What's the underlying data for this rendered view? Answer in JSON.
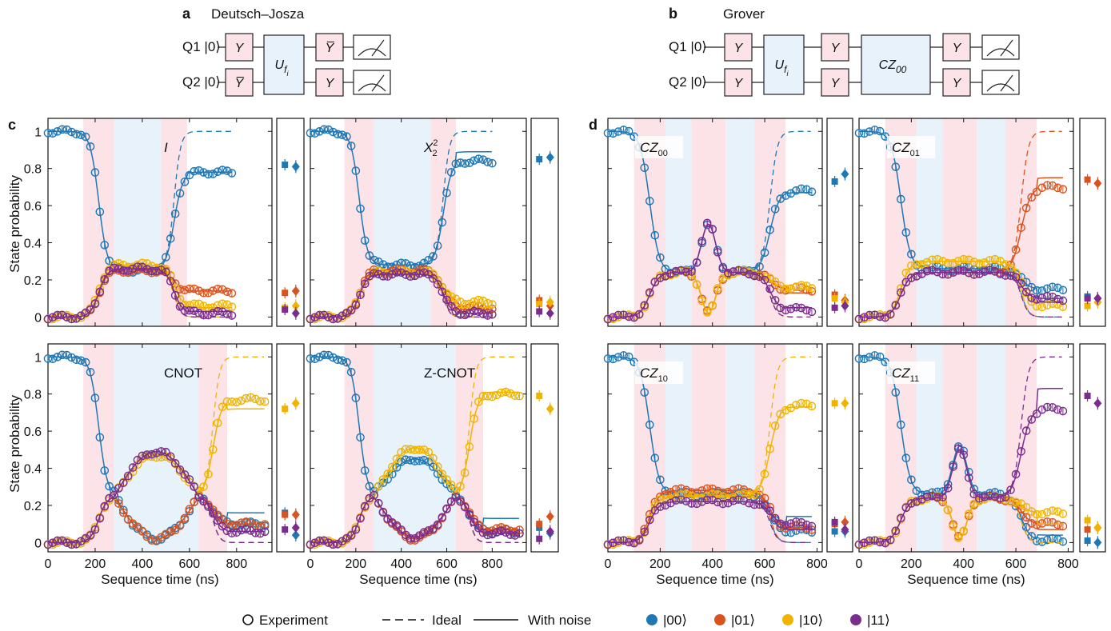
{
  "panel_letters": {
    "a": "a",
    "b": "b",
    "c": "c",
    "d": "d"
  },
  "circuit_a": {
    "title": "Deutsch–Josza",
    "q1_label": "Q1 |0⟩",
    "q2_label": "Q2 |0⟩",
    "q1_gates": [
      "Y",
      "Y̅"
    ],
    "q2_gates": [
      "Y̅",
      "Y"
    ],
    "oracle": "U",
    "oracle_sub": "f",
    "oracle_subsub": "i"
  },
  "circuit_b": {
    "title": "Grover",
    "q1_label": "Q1 |0⟩",
    "q2_label": "Q2 |0⟩",
    "q1_gates": [
      "Y",
      "Y",
      "Y"
    ],
    "q2_gates": [
      "Y",
      "Y",
      "Y"
    ],
    "oracle": "U",
    "oracle_sub": "f",
    "oracle_subsub": "i",
    "cz": "CZ",
    "cz_sub": "00"
  },
  "axes": {
    "ylabel": "State probability",
    "xlabel": "Sequence time (ns)",
    "yticks": [
      "0",
      "0.2",
      "0.4",
      "0.6",
      "0.8",
      "1"
    ],
    "xticks_c": [
      "0",
      "200",
      "400",
      "600",
      "800"
    ],
    "xticks_d": [
      "0",
      "200",
      "400",
      "600",
      "800"
    ]
  },
  "legend": {
    "experiment": "Experiment",
    "ideal": "Ideal",
    "noise": "With noise",
    "s00": "|00⟩",
    "s01": "|01⟩",
    "s10": "|10⟩",
    "s11": "|11⟩"
  },
  "colors": {
    "s00": "#1f77b4",
    "s01": "#d9531e",
    "s10": "#f0b400",
    "s11": "#7b2d8e",
    "pink": "#fbe3e7",
    "blue": "#e8f2fb"
  },
  "chart_data": [
    {
      "id": "I",
      "type": "line",
      "title": "I",
      "xlim": [
        0,
        950
      ],
      "ylim": [
        -0.05,
        1.07
      ],
      "regions": [
        [
          150,
          280,
          "pink"
        ],
        [
          280,
          480,
          "blue"
        ],
        [
          480,
          590,
          "pink"
        ]
      ],
      "series": [
        {
          "state": "00",
          "exp_final": 0.78,
          "ideal_final": 1.0,
          "noise_final": 0.78,
          "mid": 0.25,
          "t_end": 780,
          "side": [
            0.82,
            0.81
          ]
        },
        {
          "state": "01",
          "exp_final": 0.14,
          "ideal_final": 0.0,
          "noise_final": 0.14,
          "mid": 0.25,
          "t_end": 780,
          "side": [
            0.13,
            0.14
          ]
        },
        {
          "state": "10",
          "exp_final": 0.06,
          "ideal_final": 0.0,
          "noise_final": 0.05,
          "mid": 0.28,
          "t_end": 780,
          "side": [
            0.05,
            0.06
          ]
        },
        {
          "state": "11",
          "exp_final": 0.02,
          "ideal_final": 0.0,
          "noise_final": 0.03,
          "mid": 0.26,
          "t_end": 780,
          "side": [
            0.04,
            0.02
          ]
        }
      ]
    },
    {
      "id": "X22",
      "type": "line",
      "title": "X",
      "title_sup": "2",
      "title_sub": "2",
      "xlim": [
        0,
        950
      ],
      "ylim": [
        -0.05,
        1.07
      ],
      "regions": [
        [
          150,
          280,
          "pink"
        ],
        [
          280,
          530,
          "blue"
        ],
        [
          530,
          640,
          "pink"
        ]
      ],
      "series": [
        {
          "state": "00",
          "exp_final": 0.84,
          "ideal_final": 1.0,
          "noise_final": 0.89,
          "mid": 0.28,
          "t_end": 800,
          "side": [
            0.85,
            0.86
          ]
        },
        {
          "state": "01",
          "exp_final": 0.05,
          "ideal_final": 0.0,
          "noise_final": 0.04,
          "mid": 0.25,
          "t_end": 800,
          "side": [
            0.09,
            0.06
          ]
        },
        {
          "state": "10",
          "exp_final": 0.08,
          "ideal_final": 0.0,
          "noise_final": 0.05,
          "mid": 0.24,
          "t_end": 800,
          "side": [
            0.07,
            0.08
          ]
        },
        {
          "state": "11",
          "exp_final": 0.02,
          "ideal_final": 0.0,
          "noise_final": 0.02,
          "mid": 0.23,
          "t_end": 800,
          "side": [
            0.03,
            0.02
          ]
        }
      ]
    },
    {
      "id": "CNOT",
      "type": "line",
      "title": "CNOT",
      "xlim": [
        0,
        950
      ],
      "ylim": [
        -0.05,
        1.07
      ],
      "regions": [
        [
          150,
          280,
          "pink"
        ],
        [
          280,
          640,
          "blue"
        ],
        [
          640,
          760,
          "pink"
        ]
      ],
      "series": [
        {
          "state": "00",
          "exp_final": 0.1,
          "ideal_final": 0.0,
          "noise_final": 0.16,
          "mid": 0.02,
          "t_end": 920,
          "side": [
            0.16,
            0.04
          ],
          "swap": true
        },
        {
          "state": "01",
          "exp_final": 0.1,
          "ideal_final": 0.0,
          "noise_final": 0.1,
          "mid": 0.02,
          "t_end": 920,
          "side": [
            0.15,
            0.15
          ],
          "swap": true
        },
        {
          "state": "10",
          "exp_final": 0.77,
          "ideal_final": 1.0,
          "noise_final": 0.72,
          "mid": 0.47,
          "t_end": 920,
          "side": [
            0.72,
            0.75
          ],
          "swap": true
        },
        {
          "state": "11",
          "exp_final": 0.06,
          "ideal_final": 0.0,
          "noise_final": 0.06,
          "mid": 0.49,
          "t_end": 920,
          "side": [
            0.07,
            0.08
          ],
          "swap": true
        }
      ]
    },
    {
      "id": "ZCNOT",
      "type": "line",
      "title": "Z-CNOT",
      "xlim": [
        0,
        950
      ],
      "ylim": [
        -0.05,
        1.07
      ],
      "regions": [
        [
          150,
          280,
          "pink"
        ],
        [
          280,
          640,
          "blue"
        ],
        [
          640,
          760,
          "pink"
        ]
      ],
      "series": [
        {
          "state": "00",
          "exp_final": 0.06,
          "ideal_final": 0.0,
          "noise_final": 0.13,
          "mid": 0.45,
          "t_end": 920,
          "side": [
            0.08,
            0.05
          ],
          "swap": true
        },
        {
          "state": "01",
          "exp_final": 0.07,
          "ideal_final": 0.0,
          "noise_final": 0.07,
          "mid": 0.02,
          "t_end": 920,
          "side": [
            0.1,
            0.14
          ],
          "swap": true
        },
        {
          "state": "10",
          "exp_final": 0.8,
          "ideal_final": 1.0,
          "noise_final": 0.81,
          "mid": 0.51,
          "t_end": 920,
          "side": [
            0.79,
            0.72
          ],
          "swap": true
        },
        {
          "state": "11",
          "exp_final": 0.05,
          "ideal_final": 0.0,
          "noise_final": 0.05,
          "mid": 0.03,
          "t_end": 920,
          "side": [
            0.02,
            0.06
          ],
          "swap": true
        }
      ]
    },
    {
      "id": "CZ00",
      "type": "line",
      "title": "CZ",
      "title_sub": "00",
      "xlim": [
        0,
        820
      ],
      "ylim": [
        -0.05,
        1.07
      ],
      "regions": [
        [
          100,
          220,
          "pink"
        ],
        [
          220,
          320,
          "blue"
        ],
        [
          320,
          450,
          "pink"
        ],
        [
          450,
          560,
          "blue"
        ],
        [
          560,
          680,
          "pink"
        ]
      ],
      "series": [
        {
          "state": "00",
          "exp_final": 0.68,
          "ideal_final": 1.0,
          "noise_final": 0.67,
          "mid": 0.24,
          "t_end": 780,
          "side": [
            0.73,
            0.77
          ],
          "grover": true
        },
        {
          "state": "01",
          "exp_final": 0.15,
          "ideal_final": 0.0,
          "noise_final": 0.13,
          "mid": 0.24,
          "t_end": 780,
          "side": [
            0.12,
            0.09
          ],
          "grover": true
        },
        {
          "state": "10",
          "exp_final": 0.16,
          "ideal_final": 0.0,
          "noise_final": 0.15,
          "mid": 0.24,
          "t_end": 780,
          "side": [
            0.1,
            0.08
          ],
          "grover": true
        },
        {
          "state": "11",
          "exp_final": 0.04,
          "ideal_final": 0.0,
          "noise_final": 0.05,
          "mid": 0.24,
          "t_end": 780,
          "side": [
            0.05,
            0.06
          ],
          "grover": true
        }
      ]
    },
    {
      "id": "CZ01",
      "type": "line",
      "title": "CZ",
      "title_sub": "01",
      "xlim": [
        0,
        820
      ],
      "ylim": [
        -0.05,
        1.07
      ],
      "regions": [
        [
          100,
          220,
          "pink"
        ],
        [
          220,
          320,
          "blue"
        ],
        [
          320,
          450,
          "pink"
        ],
        [
          450,
          560,
          "blue"
        ],
        [
          560,
          680,
          "pink"
        ]
      ],
      "series": [
        {
          "state": "00",
          "exp_final": 0.15,
          "ideal_final": 0.0,
          "noise_final": 0.1,
          "mid": 0.26,
          "t_end": 780,
          "side": [
            0.11,
            0.1
          ]
        },
        {
          "state": "01",
          "exp_final": 0.7,
          "ideal_final": 1.0,
          "noise_final": 0.75,
          "mid": 0.24,
          "t_end": 780,
          "side": [
            0.74,
            0.72
          ]
        },
        {
          "state": "10",
          "exp_final": 0.06,
          "ideal_final": 0.0,
          "noise_final": 0.08,
          "mid": 0.3,
          "t_end": 780,
          "side": [
            0.06,
            0.08
          ]
        },
        {
          "state": "11",
          "exp_final": 0.1,
          "ideal_final": 0.0,
          "noise_final": 0.08,
          "mid": 0.24,
          "t_end": 780,
          "side": [
            0.1,
            0.1
          ]
        }
      ]
    },
    {
      "id": "CZ10",
      "type": "line",
      "title": "CZ",
      "title_sub": "10",
      "xlim": [
        0,
        820
      ],
      "ylim": [
        -0.05,
        1.07
      ],
      "regions": [
        [
          100,
          220,
          "pink"
        ],
        [
          220,
          320,
          "blue"
        ],
        [
          320,
          450,
          "pink"
        ],
        [
          450,
          560,
          "blue"
        ],
        [
          560,
          680,
          "pink"
        ]
      ],
      "series": [
        {
          "state": "00",
          "exp_final": 0.06,
          "ideal_final": 0.0,
          "noise_final": 0.14,
          "mid": 0.26,
          "t_end": 780,
          "side": [
            0.06,
            0.06
          ]
        },
        {
          "state": "01",
          "exp_final": 0.08,
          "ideal_final": 0.0,
          "noise_final": 0.08,
          "mid": 0.28,
          "t_end": 780,
          "side": [
            0.1,
            0.11
          ]
        },
        {
          "state": "10",
          "exp_final": 0.74,
          "ideal_final": 1.0,
          "noise_final": 0.73,
          "mid": 0.25,
          "t_end": 780,
          "side": [
            0.75,
            0.75
          ]
        },
        {
          "state": "11",
          "exp_final": 0.1,
          "ideal_final": 0.0,
          "noise_final": 0.07,
          "mid": 0.22,
          "t_end": 780,
          "side": [
            0.11,
            0.07
          ]
        }
      ]
    },
    {
      "id": "CZ11",
      "type": "line",
      "title": "CZ",
      "title_sub": "11",
      "xlim": [
        0,
        820
      ],
      "ylim": [
        -0.05,
        1.07
      ],
      "regions": [
        [
          100,
          220,
          "pink"
        ],
        [
          220,
          320,
          "blue"
        ],
        [
          320,
          450,
          "pink"
        ],
        [
          450,
          560,
          "blue"
        ],
        [
          560,
          680,
          "pink"
        ]
      ],
      "series": [
        {
          "state": "00",
          "exp_final": 0.01,
          "ideal_final": 0.0,
          "noise_final": 0.04,
          "mid": 0.26,
          "t_end": 780,
          "side": [
            0.01,
            0.0
          ],
          "grover": true
        },
        {
          "state": "01",
          "exp_final": 0.1,
          "ideal_final": 0.0,
          "noise_final": 0.07,
          "mid": 0.24,
          "t_end": 780,
          "side": [
            0.07,
            0.08
          ],
          "grover": true
        },
        {
          "state": "10",
          "exp_final": 0.16,
          "ideal_final": 0.0,
          "noise_final": 0.1,
          "mid": 0.24,
          "t_end": 780,
          "side": [
            0.12,
            0.08
          ],
          "grover": true
        },
        {
          "state": "11",
          "exp_final": 0.72,
          "ideal_final": 1.0,
          "noise_final": 0.83,
          "mid": 0.24,
          "t_end": 780,
          "side": [
            0.79,
            0.75
          ],
          "grover": true
        }
      ]
    }
  ]
}
